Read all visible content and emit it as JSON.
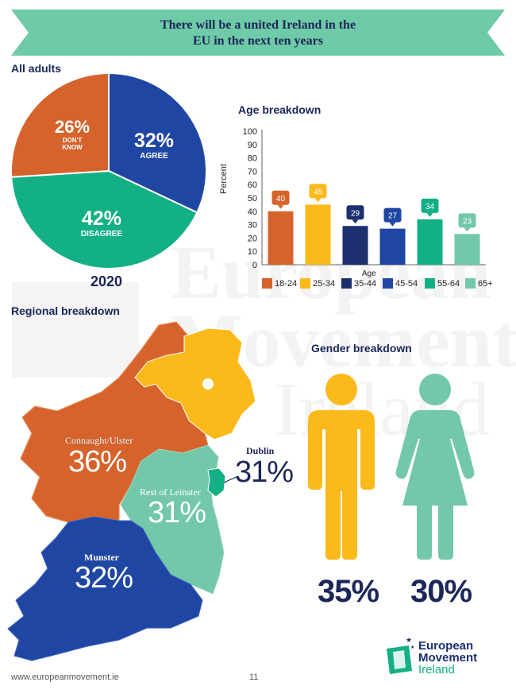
{
  "title": {
    "line1": "There will be a united Ireland in the",
    "line2": "EU in the next ten years"
  },
  "all_adults": {
    "label": "All adults",
    "year": "2020"
  },
  "age": {
    "heading": "Age breakdown"
  },
  "regional": {
    "heading": "Regional breakdown"
  },
  "gender": {
    "heading": "Gender breakdown",
    "male_pct": "35%",
    "female_pct": "30%"
  },
  "colors": {
    "orange": "#d6632b",
    "yellow": "#fbb91a",
    "navy": "#1c2f6e",
    "blue": "#1f46a3",
    "teal": "#13b085",
    "mint": "#72c8a9",
    "banner": "#6ecaa7"
  },
  "regions": {
    "connaught": {
      "name": "Connaught/Ulster",
      "pct": "36%"
    },
    "leinster": {
      "name": "Rest of Leinster",
      "pct": "31%"
    },
    "dublin": {
      "name": "Dublin",
      "pct": "31%"
    },
    "munster": {
      "name": "Munster",
      "pct": "32%"
    }
  },
  "footer": {
    "url": "www.europeanmovement.ie",
    "page": "11"
  },
  "logo": {
    "line1": "European",
    "line2": "Movement",
    "line3": "Ireland"
  },
  "watermark": {
    "line1": "European",
    "line2": "Movement",
    "line3": "Ireland"
  },
  "chart_data": [
    {
      "type": "pie",
      "slices": [
        {
          "label": "AGREE",
          "value": 32,
          "display": "32%",
          "color": "#1f46a3"
        },
        {
          "label": "DISAGREE",
          "value": 42,
          "display": "42%",
          "color": "#13b085"
        },
        {
          "label": "DON'T KNOW",
          "value": 26,
          "display": "26%",
          "color": "#d6632b"
        }
      ]
    },
    {
      "type": "bar",
      "ylabel": "Percent",
      "xlabel": "Age",
      "ylim": [
        0,
        100
      ],
      "yticks": [
        0,
        10,
        20,
        30,
        40,
        50,
        60,
        70,
        80,
        90,
        100
      ],
      "categories": [
        "18-24",
        "25-34",
        "35-44",
        "45-54",
        "55-64",
        "65+"
      ],
      "values": [
        40,
        45,
        29,
        27,
        34,
        23
      ],
      "colors": [
        "#d6632b",
        "#fbb91a",
        "#1c2f6e",
        "#1f46a3",
        "#13b085",
        "#72c8a9"
      ]
    }
  ]
}
